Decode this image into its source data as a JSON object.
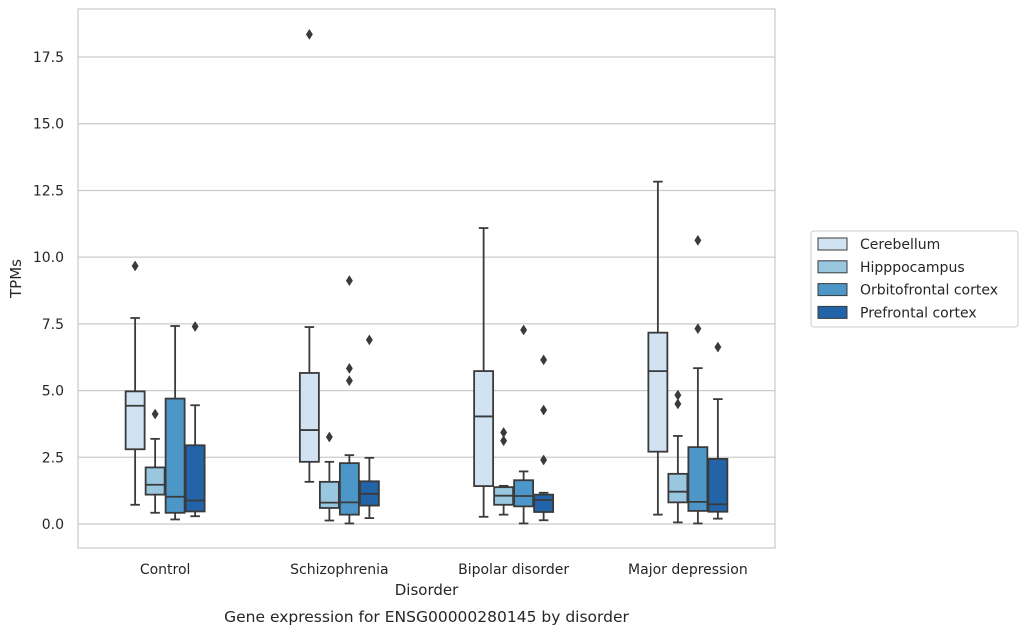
{
  "caption": "Gene expression for ENSG00000280145 by disorder",
  "colors": {
    "Cerebellum": "#d1e2f2",
    "Hipppocampus": "#9ac7e0",
    "Orbitofrontal cortex": "#4d97c8",
    "Prefrontal cortex": "#2363a8",
    "grid": "#cccccc",
    "line": "#3a3a3a"
  },
  "chart_data": {
    "type": "box",
    "xlabel": "Disorder",
    "ylabel": "TPMs",
    "ylim": [
      -0.9,
      19.3
    ],
    "yticks": [
      0.0,
      2.5,
      5.0,
      7.5,
      10.0,
      12.5,
      15.0,
      17.5
    ],
    "ytick_labels": [
      "0.0",
      "2.5",
      "5.0",
      "7.5",
      "10.0",
      "12.5",
      "15.0",
      "17.5"
    ],
    "grid": true,
    "legend_position": "right-outside",
    "categories": [
      "Control",
      "Schizophrenia",
      "Bipolar disorder",
      "Major depression"
    ],
    "series": [
      {
        "name": "Cerebellum",
        "boxes": [
          {
            "whislo": 0.72,
            "q1": 2.8,
            "med": 4.43,
            "q3": 4.97,
            "whishi": 7.72,
            "fliers": [
              9.67
            ]
          },
          {
            "whislo": 1.58,
            "q1": 2.33,
            "med": 3.52,
            "q3": 5.66,
            "whishi": 7.38,
            "fliers": [
              18.35
            ]
          },
          {
            "whislo": 0.27,
            "q1": 1.42,
            "med": 4.03,
            "q3": 5.73,
            "whishi": 11.09,
            "fliers": []
          },
          {
            "whislo": 0.35,
            "q1": 2.71,
            "med": 5.73,
            "q3": 7.17,
            "whishi": 12.83,
            "fliers": []
          }
        ]
      },
      {
        "name": "Hipppocampus",
        "boxes": [
          {
            "whislo": 0.42,
            "q1": 1.1,
            "med": 1.47,
            "q3": 2.12,
            "whishi": 3.19,
            "fliers": [
              4.12
            ]
          },
          {
            "whislo": 0.13,
            "q1": 0.6,
            "med": 0.8,
            "q3": 1.58,
            "whishi": 2.33,
            "fliers": [
              3.26
            ]
          },
          {
            "whislo": 0.35,
            "q1": 0.72,
            "med": 1.06,
            "q3": 1.38,
            "whishi": 1.43,
            "fliers": [
              3.12,
              3.43
            ]
          },
          {
            "whislo": 0.06,
            "q1": 0.81,
            "med": 1.21,
            "q3": 1.88,
            "whishi": 3.3,
            "fliers": [
              4.5,
              4.83
            ]
          }
        ]
      },
      {
        "name": "Orbitofrontal cortex",
        "boxes": [
          {
            "whislo": 0.17,
            "q1": 0.42,
            "med": 1.02,
            "q3": 4.7,
            "whishi": 7.42,
            "fliers": []
          },
          {
            "whislo": 0.02,
            "q1": 0.35,
            "med": 0.81,
            "q3": 2.28,
            "whishi": 2.58,
            "fliers": [
              5.37,
              5.83,
              9.12
            ]
          },
          {
            "whislo": 0.02,
            "q1": 0.66,
            "med": 1.05,
            "q3": 1.64,
            "whishi": 1.97,
            "fliers": [
              7.27
            ]
          },
          {
            "whislo": 0.02,
            "q1": 0.49,
            "med": 0.83,
            "q3": 2.88,
            "whishi": 5.84,
            "fliers": [
              7.32,
              10.63
            ]
          }
        ]
      },
      {
        "name": "Prefrontal cortex",
        "boxes": [
          {
            "whislo": 0.29,
            "q1": 0.47,
            "med": 0.88,
            "q3": 2.95,
            "whishi": 4.45,
            "fliers": [
              7.4
            ]
          },
          {
            "whislo": 0.22,
            "q1": 0.69,
            "med": 1.13,
            "q3": 1.6,
            "whishi": 2.48,
            "fliers": [
              6.9
            ]
          },
          {
            "whislo": 0.14,
            "q1": 0.45,
            "med": 0.9,
            "q3": 1.1,
            "whishi": 1.17,
            "fliers": [
              2.4,
              4.27,
              6.15
            ]
          },
          {
            "whislo": 0.2,
            "q1": 0.46,
            "med": 0.74,
            "q3": 2.44,
            "whishi": 4.68,
            "fliers": [
              6.63
            ]
          }
        ]
      }
    ]
  }
}
